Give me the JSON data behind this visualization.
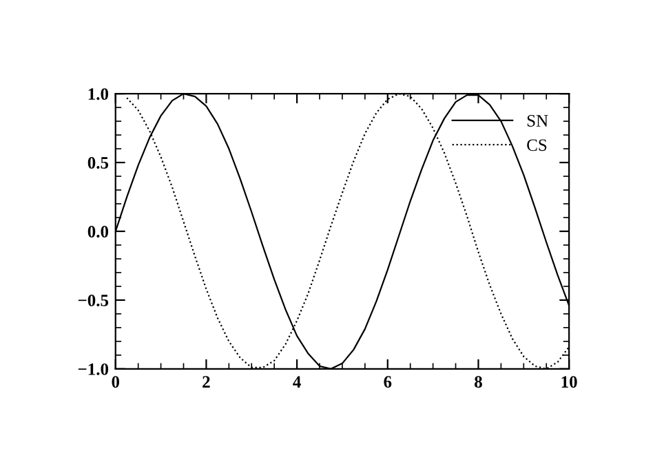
{
  "chart_data": {
    "type": "line",
    "xlim": [
      0,
      10
    ],
    "ylim": [
      -1.0,
      1.0
    ],
    "xticks": [
      0,
      2,
      4,
      6,
      8,
      10
    ],
    "yticks": [
      {
        "value": -1,
        "label": "−1.0"
      },
      {
        "value": -0.5,
        "label": "−0.5"
      },
      {
        "value": 0,
        "label": "0.0"
      },
      {
        "value": 0.5,
        "label": "0.5"
      },
      {
        "value": 1,
        "label": "1.0"
      }
    ],
    "grid": false,
    "legend": "top right",
    "marker": "none",
    "series": [
      {
        "name": "SN",
        "color": "#000000",
        "line_style": "solid",
        "x": [
          0,
          0.25,
          0.5,
          0.75,
          1,
          1.25,
          1.5,
          1.75,
          2,
          2.25,
          2.5,
          2.75,
          3,
          3.25,
          3.5,
          3.75,
          4,
          4.25,
          4.5,
          4.75,
          5,
          5.25,
          5.5,
          5.75,
          6,
          6.25,
          6.5,
          6.75,
          7,
          7.25,
          7.5,
          7.75,
          8,
          8.25,
          8.5,
          8.75,
          9,
          9.25,
          9.5,
          9.75,
          10
        ],
        "values": [
          0.0,
          0.25,
          0.48,
          0.68,
          0.84,
          0.95,
          1.0,
          0.98,
          0.91,
          0.78,
          0.6,
          0.38,
          0.14,
          -0.11,
          -0.35,
          -0.57,
          -0.76,
          -0.89,
          -0.98,
          -1.0,
          -0.96,
          -0.86,
          -0.71,
          -0.51,
          -0.28,
          -0.03,
          0.22,
          0.45,
          0.66,
          0.82,
          0.94,
          0.99,
          0.99,
          0.92,
          0.8,
          0.62,
          0.41,
          0.17,
          -0.08,
          -0.32,
          -0.54
        ]
      },
      {
        "name": "CS",
        "color": "#000000",
        "line_style": "dotted",
        "x": [
          0.25,
          0.5,
          0.75,
          1,
          1.25,
          1.5,
          1.75,
          2,
          2.25,
          2.5,
          2.75,
          3,
          3.25,
          3.5,
          3.75,
          4,
          4.25,
          4.5,
          4.75,
          5,
          5.25,
          5.5,
          5.75,
          6,
          6.25,
          6.5,
          6.75,
          7,
          7.25,
          7.5,
          7.75,
          8,
          8.25,
          8.5,
          8.75,
          9,
          9.25,
          9.5,
          9.75,
          10
        ],
        "values": [
          0.97,
          0.88,
          0.73,
          0.54,
          0.32,
          0.07,
          -0.18,
          -0.42,
          -0.63,
          -0.8,
          -0.92,
          -0.99,
          -0.99,
          -0.94,
          -0.82,
          -0.65,
          -0.45,
          -0.21,
          0.04,
          0.28,
          0.51,
          0.71,
          0.86,
          0.96,
          1.0,
          0.98,
          0.89,
          0.75,
          0.57,
          0.35,
          0.11,
          -0.15,
          -0.39,
          -0.6,
          -0.78,
          -0.91,
          -0.98,
          -1.0,
          -0.95,
          -0.84
        ]
      }
    ]
  }
}
